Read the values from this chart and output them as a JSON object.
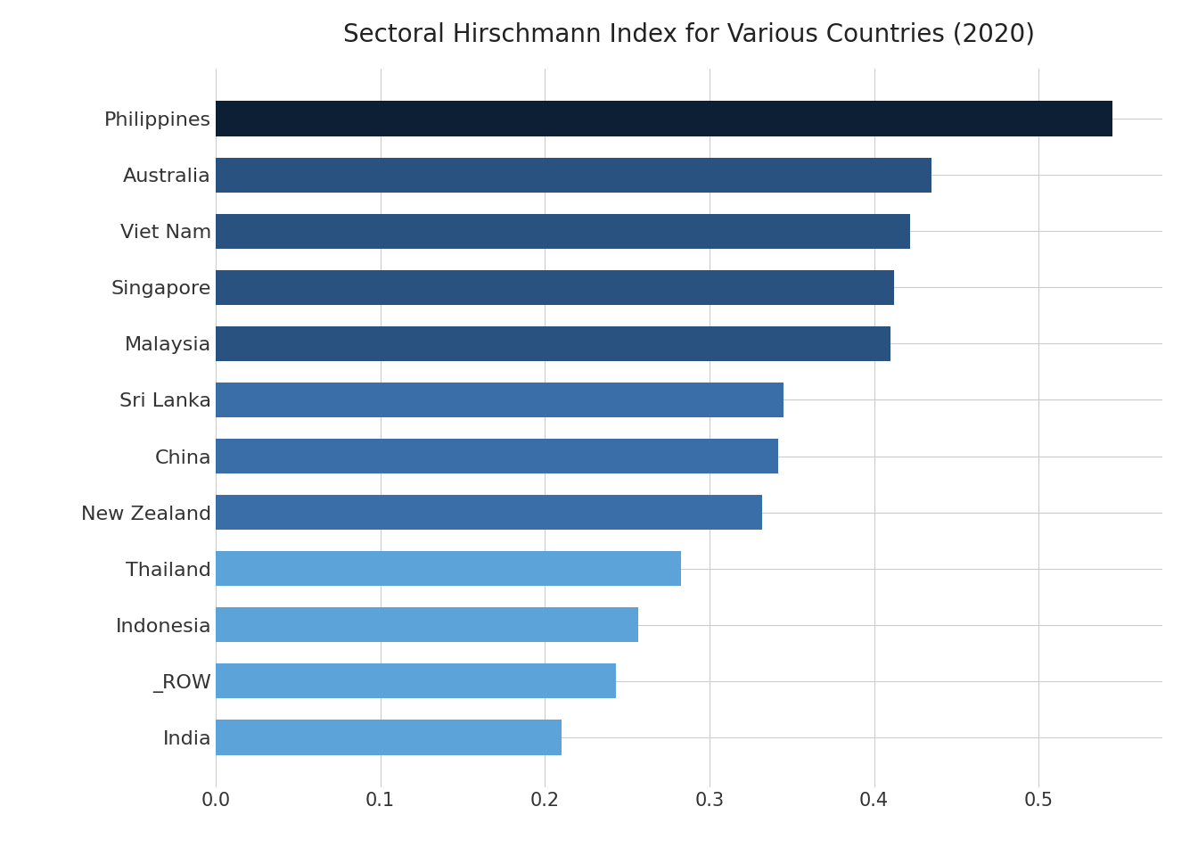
{
  "title": "Sectoral Hirschmann Index for Various Countries (2020)",
  "categories": [
    "Philippines",
    "Australia",
    "Viet Nam",
    "Singapore",
    "Malaysia",
    "Sri Lanka",
    "China",
    "New Zealand",
    "Thailand",
    "Indonesia",
    "_ROW",
    "India"
  ],
  "values": [
    0.545,
    0.435,
    0.422,
    0.412,
    0.41,
    0.345,
    0.342,
    0.332,
    0.283,
    0.257,
    0.243,
    0.21
  ],
  "bar_colors": [
    "#0d1f35",
    "#2a5280",
    "#2a5280",
    "#2a5280",
    "#2a5280",
    "#3a6ea8",
    "#3a6ea8",
    "#3a6ea8",
    "#5ba3d9",
    "#5ba3d9",
    "#5ba3d9",
    "#5ba3d9"
  ],
  "background_color": "#ffffff",
  "xlim": [
    0,
    0.575
  ],
  "xticks": [
    0.0,
    0.1,
    0.2,
    0.3,
    0.4,
    0.5
  ],
  "title_fontsize": 20,
  "label_fontsize": 16,
  "tick_fontsize": 15,
  "bar_height": 0.62
}
